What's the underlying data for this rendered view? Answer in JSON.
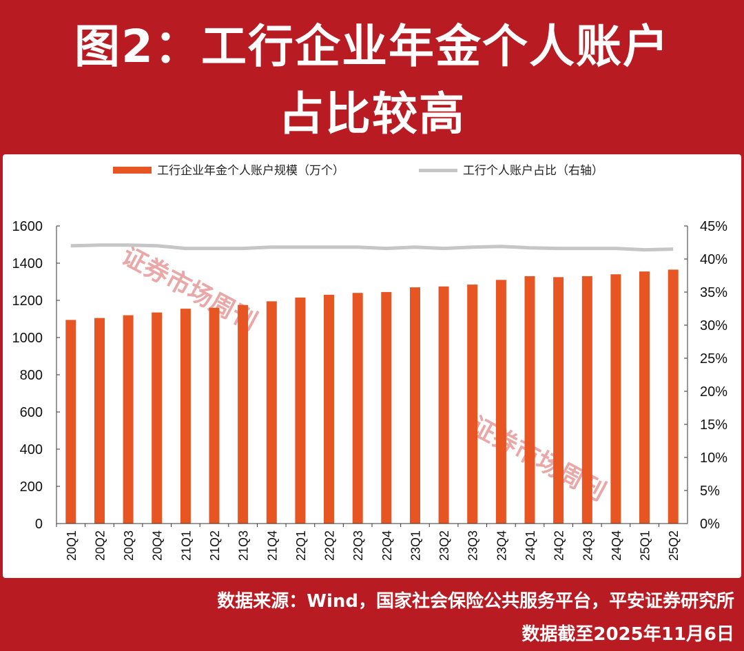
{
  "header": {
    "title_line1": "图2：工行企业年金个人账户",
    "title_line2": "占比较高"
  },
  "footer": {
    "source": "数据来源：Wind，国家社会保险公共服务平台，平安证券研究所",
    "cutoff": "数据截至2025年11月6日"
  },
  "watermark": "证券市场周刊",
  "colors": {
    "frame": "#b81b22",
    "bar": "#e65522",
    "line": "#c6c6c6",
    "watermark": "#e9a7a7"
  },
  "chart_data": {
    "type": "bar",
    "categories": [
      "20Q1",
      "20Q2",
      "20Q3",
      "20Q4",
      "21Q1",
      "21Q2",
      "21Q3",
      "21Q4",
      "22Q1",
      "22Q2",
      "22Q3",
      "22Q4",
      "23Q1",
      "23Q2",
      "23Q3",
      "23Q4",
      "24Q1",
      "24Q2",
      "24Q3",
      "24Q4",
      "25Q1",
      "25Q2"
    ],
    "series": [
      {
        "name": "工行企业年金个人账户规模（万个）",
        "kind": "bar",
        "axis": "left",
        "values": [
          1095,
          1105,
          1120,
          1135,
          1155,
          1160,
          1175,
          1195,
          1215,
          1230,
          1240,
          1245,
          1270,
          1275,
          1285,
          1310,
          1330,
          1325,
          1330,
          1340,
          1355,
          1365
        ]
      },
      {
        "name": "工行个人账户占比（右轴）",
        "kind": "line",
        "axis": "right",
        "values": [
          42.0,
          42.1,
          42.1,
          42.0,
          41.6,
          41.6,
          41.6,
          41.8,
          41.8,
          41.8,
          41.8,
          41.6,
          41.8,
          41.6,
          41.8,
          41.9,
          41.7,
          41.6,
          41.6,
          41.6,
          41.4,
          41.5
        ]
      }
    ],
    "y_left": {
      "ylim": [
        0,
        1600
      ],
      "ticks": [
        "0",
        "200",
        "400",
        "600",
        "800",
        "1000",
        "1200",
        "1400",
        "1600"
      ]
    },
    "y_right": {
      "ylim": [
        0,
        45
      ],
      "ticks": [
        "0%",
        "5%",
        "10%",
        "15%",
        "20%",
        "25%",
        "30%",
        "35%",
        "40%",
        "45%"
      ]
    },
    "legend_position": "top",
    "grid": false
  }
}
